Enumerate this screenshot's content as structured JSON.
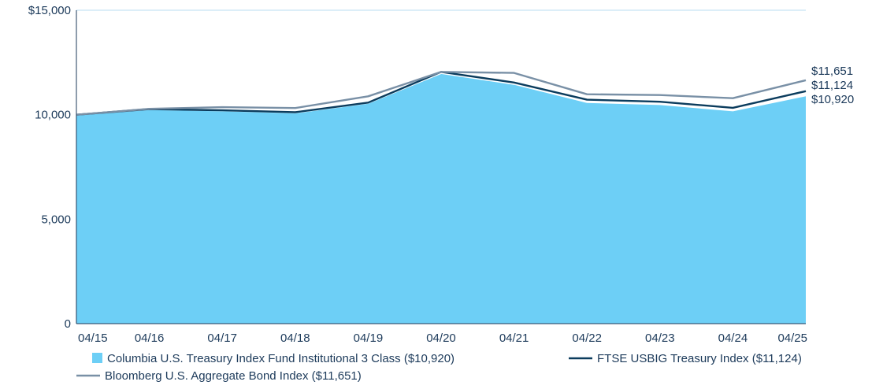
{
  "chart_data": {
    "type": "area",
    "categories": [
      "04/15",
      "04/16",
      "04/17",
      "04/18",
      "04/19",
      "04/20",
      "04/21",
      "04/22",
      "04/23",
      "04/24",
      "04/25"
    ],
    "ylim": [
      0,
      15000
    ],
    "yticks": [
      0,
      5000,
      10000,
      15000
    ],
    "ytick_labels": [
      "0",
      "5,000",
      "10,000",
      "$15,000"
    ],
    "grid": "horizontal",
    "legend_position": "bottom",
    "series": [
      {
        "name": "Columbia U.S. Treasury Index Fund Institutional 3 Class ($10,920)",
        "style": "area",
        "color": "#6dcff6",
        "values": [
          10000,
          10260,
          10200,
          10100,
          10560,
          11990,
          11470,
          10600,
          10500,
          10200,
          10920
        ],
        "end_label": "$10,920"
      },
      {
        "name": "FTSE USBIG Treasury Index ($11,124)",
        "style": "line",
        "color": "#0b3c5d",
        "values": [
          10000,
          10270,
          10210,
          10120,
          10580,
          12050,
          11540,
          10720,
          10620,
          10330,
          11124
        ],
        "end_label": "$11,124"
      },
      {
        "name": "Bloomberg U.S. Aggregate Bond Index ($11,651)",
        "style": "line",
        "color": "#7990a6",
        "values": [
          10000,
          10280,
          10360,
          10320,
          10880,
          12050,
          12000,
          10980,
          10940,
          10790,
          11651
        ],
        "end_label": "$11,651"
      }
    ]
  }
}
